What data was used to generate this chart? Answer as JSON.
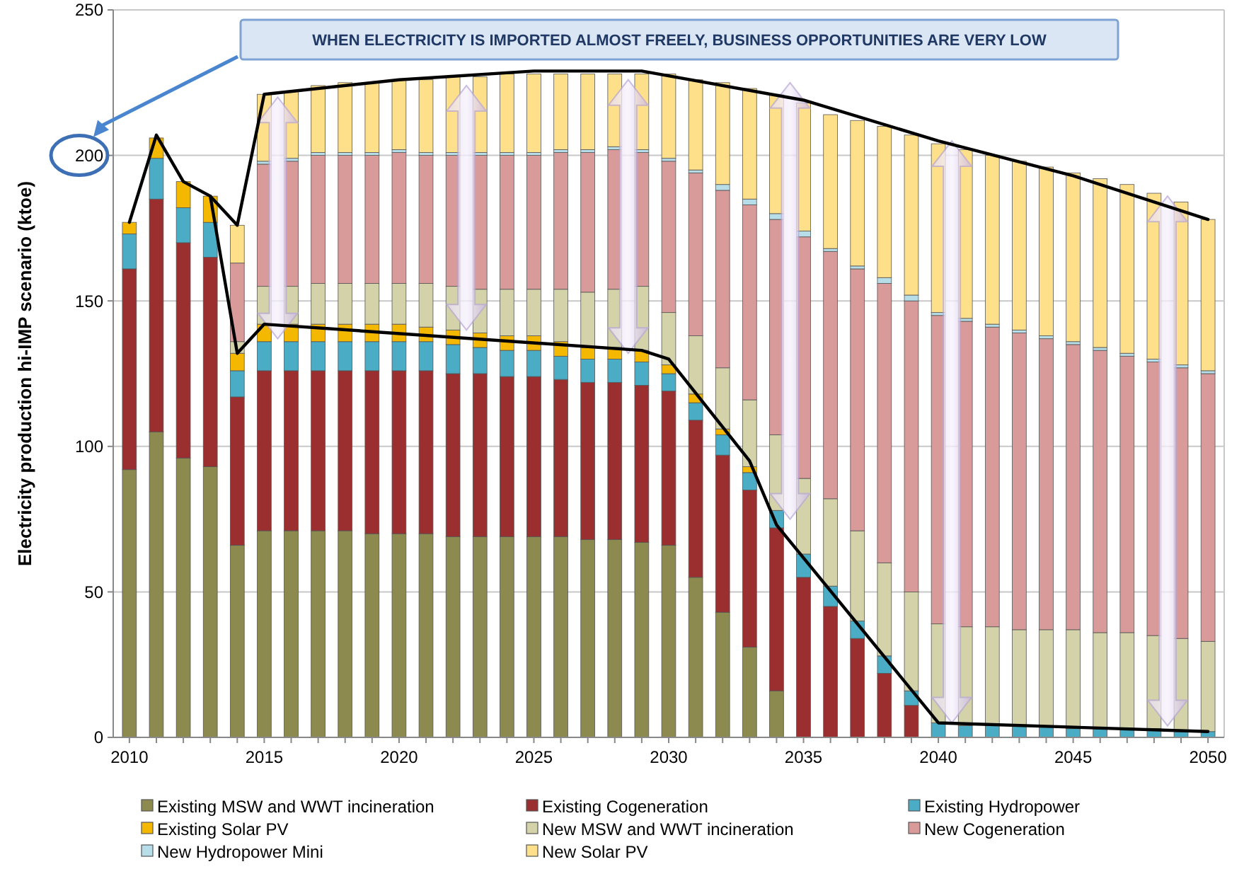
{
  "chart_data": {
    "type": "bar",
    "stacked": true,
    "ylabel": "Electricity production hi-IMP scenario (ktoe)",
    "x": [
      2010,
      2011,
      2012,
      2013,
      2014,
      2015,
      2016,
      2017,
      2018,
      2019,
      2020,
      2021,
      2022,
      2023,
      2024,
      2025,
      2026,
      2027,
      2028,
      2029,
      2030,
      2031,
      2032,
      2033,
      2034,
      2035,
      2036,
      2037,
      2038,
      2039,
      2040,
      2041,
      2042,
      2043,
      2044,
      2045,
      2046,
      2047,
      2048,
      2049,
      2050
    ],
    "xlim": [
      2009.4,
      2050.6
    ],
    "xticks": [
      2010,
      {
        "value": 2011,
        "label": null
      },
      {
        "value": 2012,
        "label": null
      },
      {
        "value": 2013,
        "label": null
      },
      {
        "value": 2014,
        "label": null
      },
      2015,
      {
        "value": 2016,
        "label": null
      },
      {
        "value": 2017,
        "label": null
      },
      {
        "value": 2018,
        "label": null
      },
      {
        "value": 2019,
        "label": null
      },
      2020,
      {
        "value": 2021,
        "label": null
      },
      {
        "value": 2022,
        "label": null
      },
      {
        "value": 2023,
        "label": null
      },
      {
        "value": 2024,
        "label": null
      },
      2025,
      {
        "value": 2026,
        "label": null
      },
      {
        "value": 2027,
        "label": null
      },
      {
        "value": 2028,
        "label": null
      },
      {
        "value": 2029,
        "label": null
      },
      2030,
      {
        "value": 2031,
        "label": null
      },
      {
        "value": 2032,
        "label": null
      },
      {
        "value": 2033,
        "label": null
      },
      {
        "value": 2034,
        "label": null
      },
      2035,
      {
        "value": 2036,
        "label": null
      },
      {
        "value": 2037,
        "label": null
      },
      {
        "value": 2038,
        "label": null
      },
      {
        "value": 2039,
        "label": null
      },
      2040,
      {
        "value": 2041,
        "label": null
      },
      {
        "value": 2042,
        "label": null
      },
      {
        "value": 2043,
        "label": null
      },
      {
        "value": 2044,
        "label": null
      },
      2045,
      {
        "value": 2046,
        "label": null
      },
      {
        "value": 2047,
        "label": null
      },
      {
        "value": 2048,
        "label": null
      },
      {
        "value": 2049,
        "label": null
      },
      2050
    ],
    "ylim": [
      0,
      250
    ],
    "yticks": [
      0,
      50,
      100,
      150,
      200,
      250
    ],
    "grid": "y",
    "legend": "bottom",
    "series": [
      {
        "name": "Existing MSW and WWT incineration",
        "color": "#8c8a4e",
        "values": [
          92,
          105,
          96,
          93,
          66,
          71,
          71,
          71,
          71,
          70,
          70,
          70,
          69,
          69,
          69,
          69,
          69,
          68,
          68,
          67,
          66,
          55,
          43,
          31,
          16,
          0,
          0,
          0,
          0,
          0,
          0,
          0,
          0,
          0,
          0,
          0,
          0,
          0,
          0,
          0,
          0
        ]
      },
      {
        "name": "Existing Cogeneration",
        "color": "#9b2f2f",
        "values": [
          69,
          80,
          74,
          72,
          51,
          55,
          55,
          55,
          55,
          56,
          56,
          56,
          56,
          56,
          55,
          55,
          54,
          54,
          54,
          54,
          53,
          54,
          54,
          54,
          56,
          55,
          45,
          34,
          22,
          11,
          0,
          0,
          0,
          0,
          0,
          0,
          0,
          0,
          0,
          0,
          0
        ]
      },
      {
        "name": "Existing Hydropower",
        "color": "#4bacc6",
        "values": [
          12,
          14,
          12,
          12,
          9,
          10,
          10,
          10,
          10,
          10,
          10,
          10,
          10,
          9,
          9,
          9,
          8,
          8,
          8,
          8,
          6,
          6,
          7,
          6,
          6,
          8,
          7,
          6,
          6,
          5,
          5,
          4,
          4,
          4,
          4,
          3,
          3,
          3,
          3,
          2,
          2
        ]
      },
      {
        "name": "Existing Solar PV",
        "color": "#f5b800",
        "values": [
          4,
          7,
          9,
          9,
          6,
          6,
          6,
          6,
          6,
          6,
          6,
          5,
          5,
          5,
          5,
          5,
          5,
          4,
          4,
          4,
          3,
          3,
          2,
          2,
          0,
          0,
          0,
          0,
          0,
          0,
          0,
          0,
          0,
          0,
          0,
          0,
          0,
          0,
          0,
          0,
          0
        ]
      },
      {
        "name": "New MSW and WWT incineration",
        "color": "#d4d2a8",
        "values": [
          0,
          0,
          0,
          0,
          4,
          13,
          13,
          14,
          14,
          14,
          14,
          15,
          15,
          15,
          16,
          16,
          18,
          19,
          20,
          22,
          18,
          20,
          21,
          23,
          26,
          26,
          30,
          31,
          32,
          34,
          34,
          34,
          34,
          33,
          33,
          34,
          33,
          33,
          32,
          32,
          31
        ]
      },
      {
        "name": "New Cogeneration",
        "color": "#d99a9a",
        "values": [
          0,
          0,
          0,
          0,
          27,
          42,
          43,
          44,
          44,
          44,
          45,
          44,
          45,
          46,
          46,
          46,
          47,
          48,
          48,
          46,
          52,
          56,
          61,
          67,
          74,
          83,
          85,
          90,
          96,
          100,
          106,
          105,
          103,
          102,
          100,
          98,
          97,
          95,
          94,
          93,
          92
        ]
      },
      {
        "name": "New Hydropower Mini",
        "color": "#b7dde8",
        "values": [
          0,
          0,
          0,
          0,
          0,
          1,
          1,
          1,
          1,
          1,
          1,
          1,
          1,
          1,
          1,
          1,
          1,
          1,
          1,
          1,
          1,
          1,
          2,
          2,
          2,
          2,
          1,
          1,
          2,
          2,
          1,
          1,
          1,
          1,
          1,
          1,
          1,
          1,
          1,
          1,
          1
        ]
      },
      {
        "name": "New Solar PV",
        "color": "#ffe08a",
        "values": [
          0,
          0,
          0,
          0,
          13,
          23,
          23,
          23,
          24,
          24,
          24,
          25,
          26,
          26,
          27,
          27,
          26,
          26,
          25,
          26,
          29,
          31,
          35,
          38,
          41,
          44,
          46,
          50,
          52,
          55,
          58,
          58,
          58,
          58,
          58,
          58,
          58,
          58,
          57,
          56,
          52
        ]
      },
      {
        "type": "line",
        "color": "#000000",
        "marker": "none",
        "line_style": "solid",
        "x": [
          2010,
          2011,
          2012,
          2013,
          2014,
          2015,
          2020,
          2025,
          2029,
          2035,
          2040,
          2045,
          2050
        ],
        "values": [
          177,
          207,
          191,
          186,
          176,
          221,
          226,
          229,
          229,
          219,
          205,
          193,
          178
        ]
      },
      {
        "type": "line",
        "color": "#000000",
        "marker": "none",
        "line_style": "solid",
        "x": [
          2013,
          2014,
          2015,
          2029,
          2030,
          2033,
          2034,
          2040,
          2050
        ],
        "values": [
          186,
          132,
          142,
          133,
          130,
          95,
          73,
          5,
          2
        ]
      }
    ],
    "annotations": [
      "WHEN ELECTRICITY IS IMPORTED ALMOST FREELY, BUSINESS OPPORTUNITIES ARE VERY LOW"
    ]
  }
}
